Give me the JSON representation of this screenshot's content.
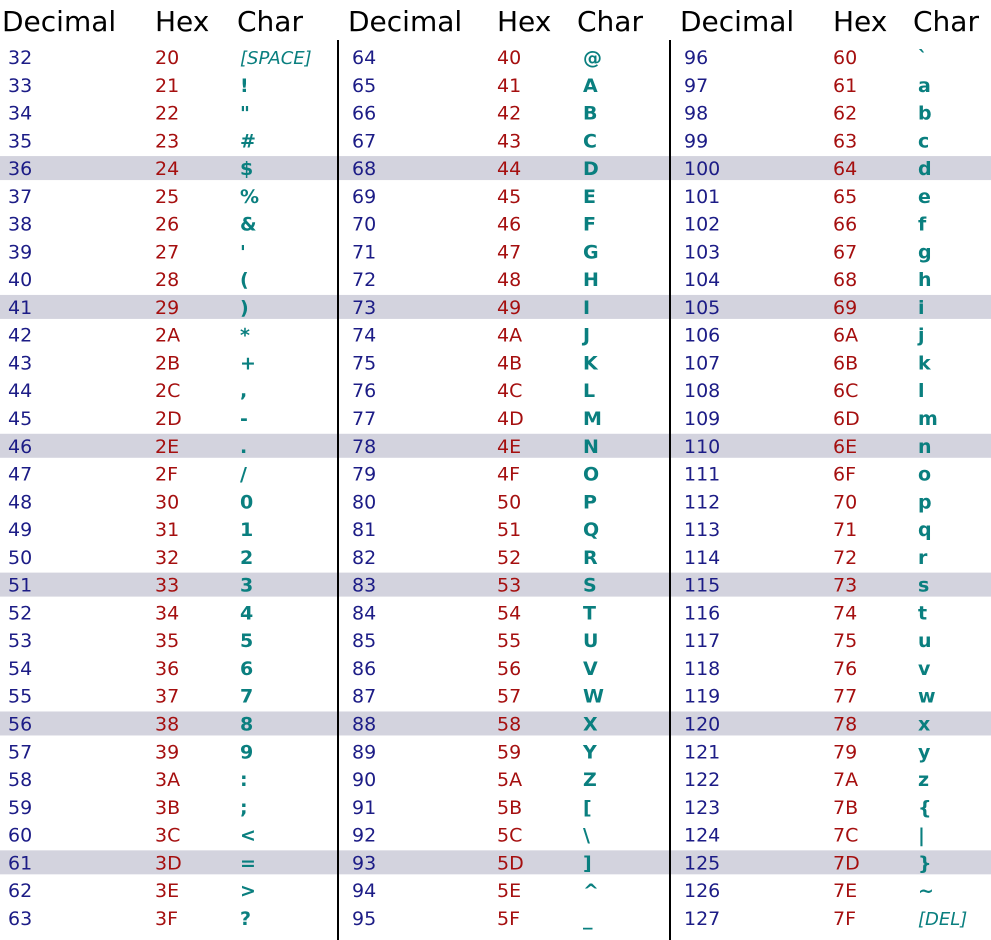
{
  "table": {
    "groups": [
      {
        "headers": [
          "Decimal",
          "Hex",
          "Char"
        ],
        "rows": [
          [
            32,
            "20",
            "[SPACE]"
          ],
          [
            33,
            "21",
            "!"
          ],
          [
            34,
            "22",
            "\""
          ],
          [
            35,
            "23",
            "#"
          ],
          [
            36,
            "24",
            "$"
          ],
          [
            37,
            "25",
            "%"
          ],
          [
            38,
            "26",
            "&"
          ],
          [
            39,
            "27",
            "'"
          ],
          [
            40,
            "28",
            "("
          ],
          [
            41,
            "29",
            ")"
          ],
          [
            42,
            "2A",
            "*"
          ],
          [
            43,
            "2B",
            "+"
          ],
          [
            44,
            "2C",
            ","
          ],
          [
            45,
            "2D",
            "-"
          ],
          [
            46,
            "2E",
            "."
          ],
          [
            47,
            "2F",
            "/"
          ],
          [
            48,
            "30",
            "0"
          ],
          [
            49,
            "31",
            "1"
          ],
          [
            50,
            "32",
            "2"
          ],
          [
            51,
            "33",
            "3"
          ],
          [
            52,
            "34",
            "4"
          ],
          [
            53,
            "35",
            "5"
          ],
          [
            54,
            "36",
            "6"
          ],
          [
            55,
            "37",
            "7"
          ],
          [
            56,
            "38",
            "8"
          ],
          [
            57,
            "39",
            "9"
          ],
          [
            58,
            "3A",
            ":"
          ],
          [
            59,
            "3B",
            ";"
          ],
          [
            60,
            "3C",
            "<"
          ],
          [
            61,
            "3D",
            "="
          ],
          [
            62,
            "3E",
            ">"
          ],
          [
            63,
            "3F",
            "?"
          ]
        ]
      },
      {
        "headers": [
          "Decimal",
          "Hex",
          "Char"
        ],
        "rows": [
          [
            64,
            "40",
            "@"
          ],
          [
            65,
            "41",
            "A"
          ],
          [
            66,
            "42",
            "B"
          ],
          [
            67,
            "43",
            "C"
          ],
          [
            68,
            "44",
            "D"
          ],
          [
            69,
            "45",
            "E"
          ],
          [
            70,
            "46",
            "F"
          ],
          [
            71,
            "47",
            "G"
          ],
          [
            72,
            "48",
            "H"
          ],
          [
            73,
            "49",
            "I"
          ],
          [
            74,
            "4A",
            "J"
          ],
          [
            75,
            "4B",
            "K"
          ],
          [
            76,
            "4C",
            "L"
          ],
          [
            77,
            "4D",
            "M"
          ],
          [
            78,
            "4E",
            "N"
          ],
          [
            79,
            "4F",
            "O"
          ],
          [
            80,
            "50",
            "P"
          ],
          [
            81,
            "51",
            "Q"
          ],
          [
            82,
            "52",
            "R"
          ],
          [
            83,
            "53",
            "S"
          ],
          [
            84,
            "54",
            "T"
          ],
          [
            85,
            "55",
            "U"
          ],
          [
            86,
            "56",
            "V"
          ],
          [
            87,
            "57",
            "W"
          ],
          [
            88,
            "58",
            "X"
          ],
          [
            89,
            "59",
            "Y"
          ],
          [
            90,
            "5A",
            "Z"
          ],
          [
            91,
            "5B",
            "["
          ],
          [
            92,
            "5C",
            "\\"
          ],
          [
            93,
            "5D",
            "]"
          ],
          [
            94,
            "5E",
            "^"
          ],
          [
            95,
            "5F",
            "_"
          ]
        ]
      },
      {
        "headers": [
          "Decimal",
          "Hex",
          "Char"
        ],
        "rows": [
          [
            96,
            "60",
            "`"
          ],
          [
            97,
            "61",
            "a"
          ],
          [
            98,
            "62",
            "b"
          ],
          [
            99,
            "63",
            "c"
          ],
          [
            100,
            "64",
            "d"
          ],
          [
            101,
            "65",
            "e"
          ],
          [
            102,
            "66",
            "f"
          ],
          [
            103,
            "67",
            "g"
          ],
          [
            104,
            "68",
            "h"
          ],
          [
            105,
            "69",
            "i"
          ],
          [
            106,
            "6A",
            "j"
          ],
          [
            107,
            "6B",
            "k"
          ],
          [
            108,
            "6C",
            "l"
          ],
          [
            109,
            "6D",
            "m"
          ],
          [
            110,
            "6E",
            "n"
          ],
          [
            111,
            "6F",
            "o"
          ],
          [
            112,
            "70",
            "p"
          ],
          [
            113,
            "71",
            "q"
          ],
          [
            114,
            "72",
            "r"
          ],
          [
            115,
            "73",
            "s"
          ],
          [
            116,
            "74",
            "t"
          ],
          [
            117,
            "75",
            "u"
          ],
          [
            118,
            "76",
            "v"
          ],
          [
            119,
            "77",
            "w"
          ],
          [
            120,
            "78",
            "x"
          ],
          [
            121,
            "79",
            "y"
          ],
          [
            122,
            "7A",
            "z"
          ],
          [
            123,
            "7B",
            "{"
          ],
          [
            124,
            "7C",
            "|"
          ],
          [
            125,
            "7D",
            "}"
          ],
          [
            126,
            "7E",
            "~"
          ],
          [
            127,
            "7F",
            "[DEL]"
          ]
        ]
      }
    ]
  }
}
